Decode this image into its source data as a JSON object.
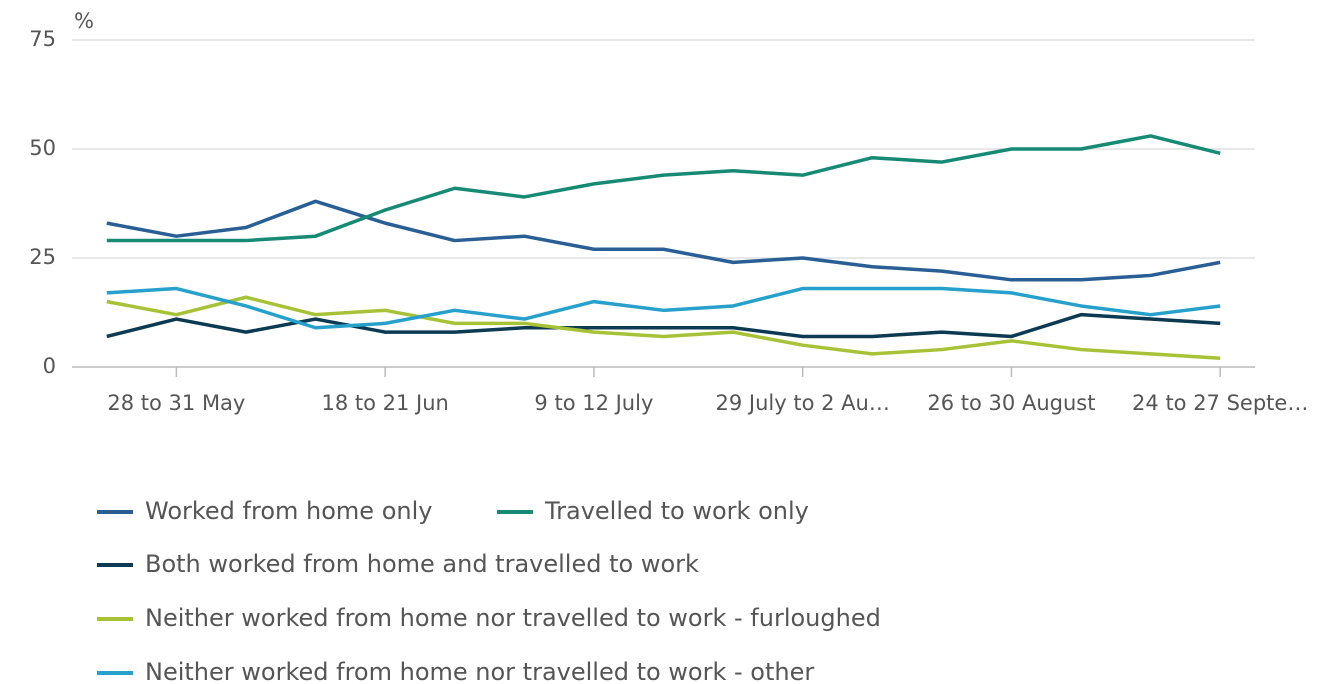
{
  "chart_data": {
    "type": "line",
    "y_axis_label": "%",
    "categories": [
      null,
      "28 to 31 May",
      null,
      null,
      "18 to 21 Jun",
      null,
      null,
      "9 to 12 July",
      null,
      null,
      "29 July to 2 Au…",
      null,
      null,
      "26 to 30 August",
      null,
      null,
      "24 to 27 Septe…"
    ],
    "series": [
      {
        "name": "Worked from home only",
        "color": "#2a5f95",
        "values": [
          33,
          30,
          32,
          38,
          33,
          29,
          30,
          27,
          27,
          24,
          25,
          23,
          22,
          20,
          20,
          21,
          24
        ]
      },
      {
        "name": "Travelled to work only",
        "color": "#178a75",
        "values": [
          29,
          29,
          29,
          30,
          36,
          41,
          39,
          42,
          44,
          45,
          44,
          48,
          47,
          50,
          50,
          53,
          49
        ]
      },
      {
        "name": "Both worked from home and travelled to work",
        "color": "#0b3a52",
        "values": [
          7,
          11,
          8,
          11,
          8,
          8,
          9,
          9,
          9,
          9,
          7,
          7,
          8,
          7,
          12,
          11,
          10
        ]
      },
      {
        "name": "Neither worked from home nor travelled to work - furloughed",
        "color": "#a8c238",
        "values": [
          15,
          12,
          16,
          12,
          13,
          10,
          10,
          8,
          7,
          8,
          5,
          3,
          4,
          6,
          4,
          3,
          2
        ]
      },
      {
        "name": "Neither worked from home nor travelled to work - other",
        "color": "#27a0cc",
        "values": [
          17,
          18,
          14,
          9,
          10,
          13,
          11,
          15,
          13,
          14,
          18,
          18,
          18,
          17,
          14,
          12,
          14
        ]
      }
    ],
    "ylim": [
      0,
      75
    ],
    "yticks": [
      0,
      25,
      50,
      75
    ],
    "grid": true
  }
}
